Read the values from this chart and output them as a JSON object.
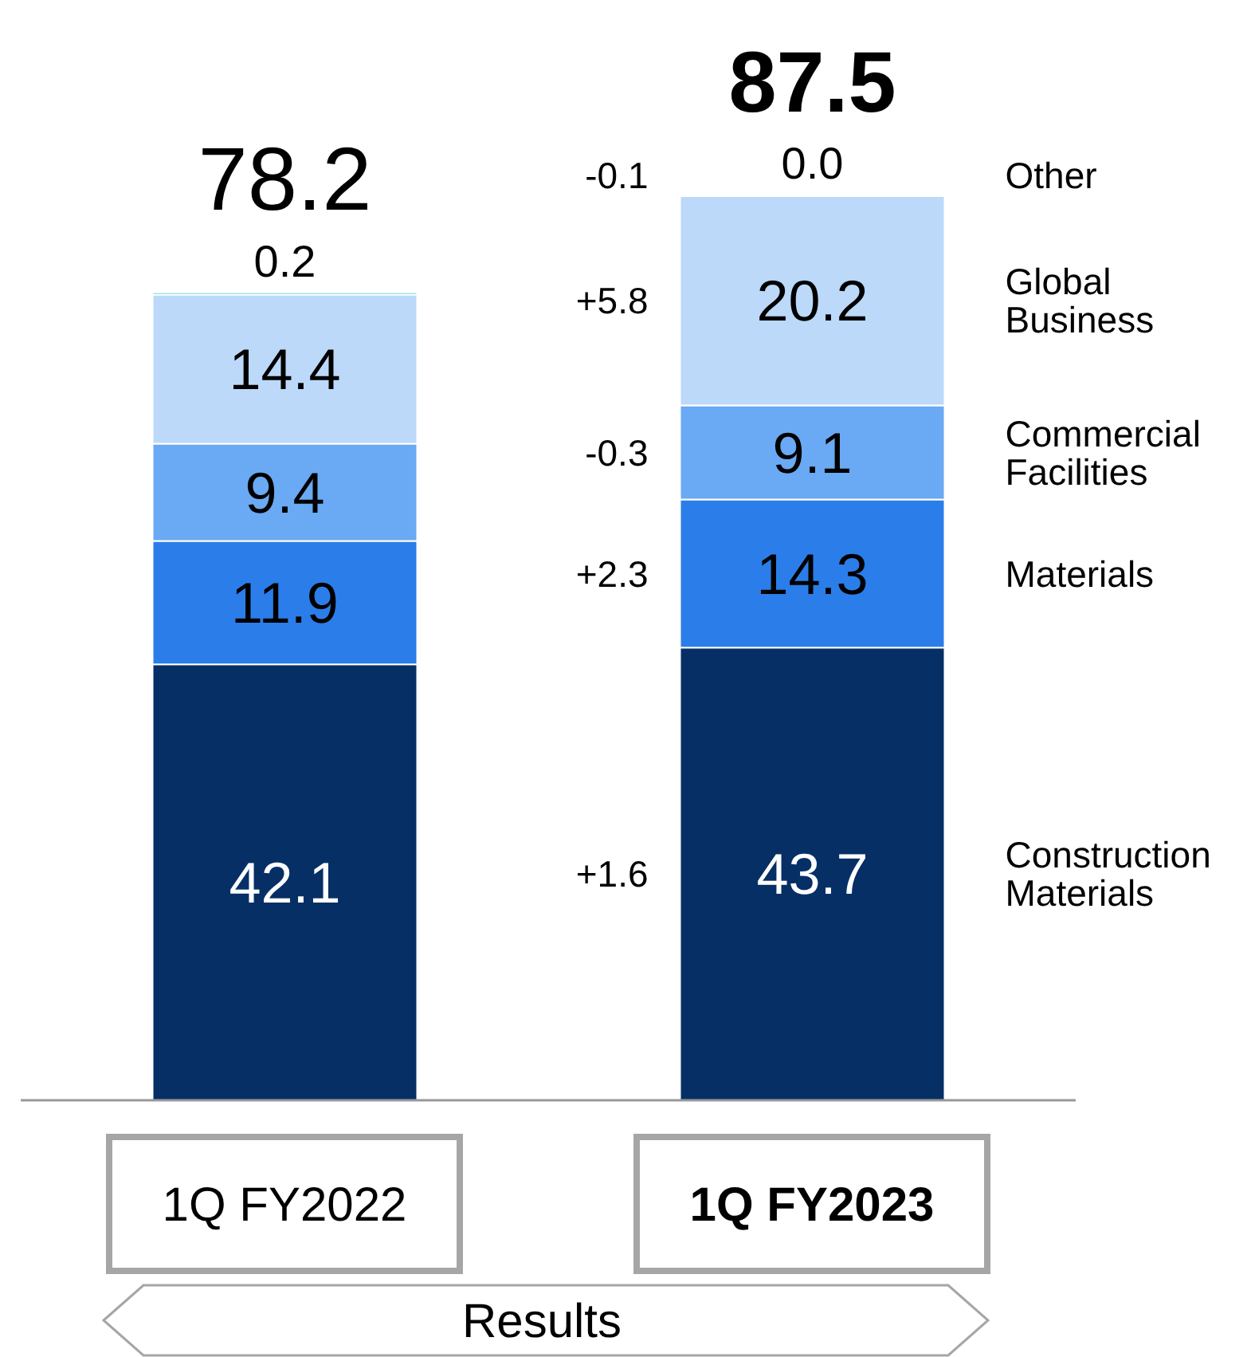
{
  "chart_data": {
    "type": "bar",
    "stacked": true,
    "categories": [
      "1Q FY2022",
      "1Q FY2023"
    ],
    "series": [
      {
        "name": "Construction Materials",
        "color": "#062f66",
        "values": [
          42.1,
          43.7
        ]
      },
      {
        "name": "Materials",
        "color": "#2b7de9",
        "values": [
          11.9,
          14.3
        ]
      },
      {
        "name": "Commercial Facilities",
        "color": "#6aa9f3",
        "values": [
          9.4,
          9.1
        ]
      },
      {
        "name": "Global Business",
        "color": "#bcd9fa",
        "values": [
          14.4,
          20.2
        ]
      },
      {
        "name": "Other",
        "color": "#3fc9c0",
        "values": [
          0.2,
          0.0
        ],
        "value_labels": [
          "0.2",
          "0.0"
        ]
      }
    ],
    "annotations": [
      "+1.6",
      "+2.3",
      "-0.3",
      "+5.8",
      "-0.1",
      "Results"
    ],
    "totals": [
      "78.2",
      "87.5"
    ],
    "data_labels": true,
    "legend": false,
    "grid": false,
    "tick_labels": "x"
  }
}
